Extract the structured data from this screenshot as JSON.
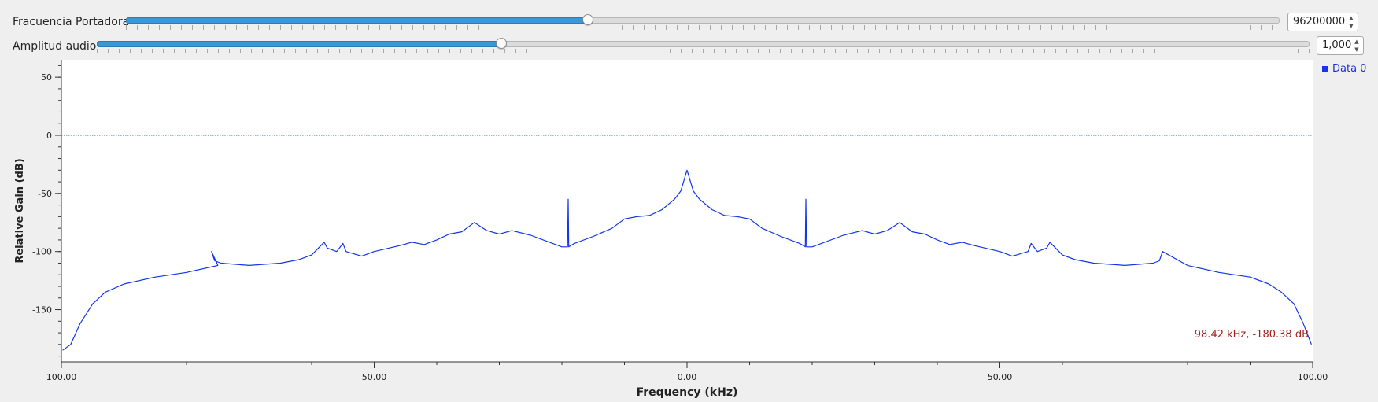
{
  "controls": {
    "carrier": {
      "label": "Fracuencia Portadora",
      "value": "96200000",
      "fraction": 0.4
    },
    "audio": {
      "label": "Amplitud audio",
      "value": "1,000",
      "fraction": 0.333
    }
  },
  "chart_data": {
    "type": "line",
    "xlabel": "Frequency (kHz)",
    "ylabel": "Relative Gain (dB)",
    "xlim": [
      -100,
      100
    ],
    "ylim": [
      -195,
      65
    ],
    "x_ticks": [
      -100,
      -50,
      0,
      50,
      100
    ],
    "x_tick_labels": [
      "100.00",
      "50.00",
      "0.00",
      "50.00",
      "100.00"
    ],
    "y_ticks": [
      50,
      0,
      -50,
      -100,
      -150
    ],
    "y_tick_labels": [
      "50",
      "0",
      "-50",
      "-100",
      "-150"
    ],
    "reference_line_y": 0,
    "legend_position": "top-right",
    "series": [
      {
        "name": "Data 0",
        "color": "#1236e8",
        "x": [
          -99.8,
          -98.5,
          -97,
          -95,
          -93,
          -90,
          -85,
          -80,
          -75,
          -76,
          -75.5,
          -74.5,
          -70,
          -65,
          -62,
          -60,
          -58,
          -57.5,
          -56,
          -55,
          -54.5,
          -52,
          -50,
          -46,
          -44,
          -42,
          -40,
          -38,
          -36,
          -34,
          -32,
          -30,
          -28,
          -25,
          -20,
          -19.1,
          -19,
          -18.9,
          -18,
          -15,
          -12,
          -10,
          -8,
          -6,
          -4,
          -2,
          -1,
          0,
          1,
          2,
          4,
          6,
          8,
          10,
          12,
          15,
          18,
          18.9,
          19,
          19.1,
          20,
          25,
          28,
          30,
          32,
          34,
          36,
          38,
          40,
          42,
          44,
          46,
          50,
          52,
          54.5,
          55,
          56,
          57.5,
          58,
          60,
          62,
          65,
          70,
          74.5,
          75.5,
          76,
          80,
          85,
          90,
          93,
          95,
          97,
          98.5,
          99.8
        ],
        "y": [
          -185,
          -180,
          -162,
          -145,
          -135,
          -128,
          -122,
          -118,
          -112,
          -100,
          -108,
          -110,
          -112,
          -110,
          -107,
          -103,
          -92,
          -97,
          -100,
          -93,
          -100,
          -104,
          -100,
          -95,
          -92,
          -94,
          -90,
          -85,
          -83,
          -75,
          -82,
          -85,
          -82,
          -86,
          -96,
          -96,
          -55,
          -96,
          -93,
          -87,
          -80,
          -72,
          -70,
          -69,
          -64,
          -55,
          -48,
          -30,
          -48,
          -55,
          -64,
          -69,
          -70,
          -72,
          -80,
          -87,
          -93,
          -96,
          -55,
          -96,
          -96,
          -86,
          -82,
          -85,
          -82,
          -75,
          -83,
          -85,
          -90,
          -94,
          -92,
          -95,
          -100,
          -104,
          -100,
          -93,
          -100,
          -97,
          -92,
          -103,
          -107,
          -110,
          -112,
          -110,
          -108,
          -100,
          -112,
          -118,
          -122,
          -128,
          -135,
          -145,
          -162,
          -180
        ]
      }
    ],
    "cursor_readout": "98.42 kHz, -180.38 dB"
  }
}
